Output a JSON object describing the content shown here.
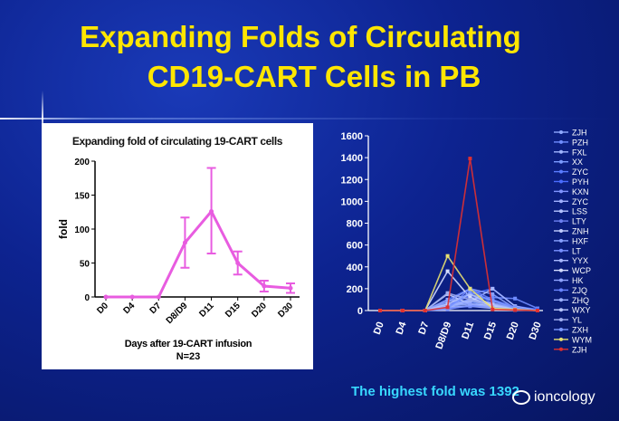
{
  "slide": {
    "title_line1": "Expanding Folds of Circulating",
    "title_line2": "CD19-CART Cells in PB",
    "caption": "The highest  fold was 1392",
    "watermark": "ioncology"
  },
  "colors": {
    "title": "#ffe600",
    "caption": "#38d8ff",
    "left_series": "#e85ce0",
    "background": "#0d2390"
  },
  "chart_data": [
    {
      "type": "line",
      "title": "Expanding fold of circulating 19-CART cells",
      "xlabel": "Days after 19-CART infusion",
      "xlabel_note": "N=23",
      "ylabel": "fold",
      "categories": [
        "D0",
        "D4",
        "D7",
        "D8/D9",
        "D11",
        "D15",
        "D20",
        "D30"
      ],
      "values": [
        0,
        0,
        0,
        80,
        126,
        50,
        16,
        13
      ],
      "error_upper": [
        0,
        0,
        0,
        117,
        190,
        67,
        24,
        20
      ],
      "error_lower": [
        0,
        0,
        0,
        43,
        64,
        33,
        8,
        6
      ],
      "ylim": [
        0,
        200
      ],
      "yticks": [
        0,
        50,
        100,
        150,
        200
      ],
      "grid": false
    },
    {
      "type": "line",
      "title": "",
      "xlabel": "",
      "ylabel": "",
      "categories": [
        "D0",
        "D4",
        "D7",
        "D8/D9",
        "D11",
        "D15",
        "D20",
        "D30"
      ],
      "ylim": [
        0,
        1600
      ],
      "yticks": [
        0,
        200,
        400,
        600,
        800,
        1000,
        1200,
        1400,
        1600
      ],
      "legend_placement": "right",
      "grid": false,
      "series": [
        {
          "name": "ZJH",
          "color": "#8fa8ff",
          "values": [
            0,
            0,
            0,
            80,
            150,
            90,
            30,
            10
          ]
        },
        {
          "name": "PZH",
          "color": "#6f8cff",
          "values": [
            0,
            0,
            0,
            60,
            100,
            120,
            110,
            20
          ]
        },
        {
          "name": "FXL",
          "color": "#9fb4ff",
          "values": [
            0,
            0,
            0,
            40,
            60,
            50,
            20,
            5
          ]
        },
        {
          "name": "XX",
          "color": "#7a9aff",
          "values": [
            0,
            0,
            0,
            30,
            80,
            40,
            10,
            0
          ]
        },
        {
          "name": "ZYC",
          "color": "#5a7cff",
          "values": [
            0,
            0,
            0,
            100,
            200,
            60,
            20,
            0
          ]
        },
        {
          "name": "PYH",
          "color": "#4a6cff",
          "values": [
            0,
            0,
            0,
            20,
            150,
            200,
            40,
            10
          ]
        },
        {
          "name": "KXN",
          "color": "#8094ff",
          "values": [
            0,
            0,
            0,
            10,
            50,
            30,
            10,
            0
          ]
        },
        {
          "name": "ZYC",
          "color": "#a0b0ff",
          "values": [
            0,
            0,
            0,
            50,
            90,
            70,
            20,
            0
          ]
        },
        {
          "name": "LSS",
          "color": "#b4c2ff",
          "values": [
            0,
            0,
            0,
            30,
            40,
            20,
            5,
            0
          ]
        },
        {
          "name": "LTY",
          "color": "#6c80f0",
          "values": [
            0,
            0,
            0,
            60,
            130,
            60,
            30,
            0
          ]
        },
        {
          "name": "ZNH",
          "color": "#c0ccff",
          "values": [
            0,
            0,
            0,
            150,
            60,
            40,
            10,
            0
          ]
        },
        {
          "name": "HXF",
          "color": "#88a0ff",
          "values": [
            0,
            0,
            0,
            80,
            200,
            150,
            20,
            0
          ]
        },
        {
          "name": "LT",
          "color": "#7890ff",
          "values": [
            0,
            0,
            0,
            20,
            40,
            30,
            10,
            0
          ]
        },
        {
          "name": "YYX",
          "color": "#a8b8ff",
          "values": [
            0,
            0,
            0,
            40,
            80,
            200,
            40,
            0
          ]
        },
        {
          "name": "WCP",
          "color": "#d4dcff",
          "values": [
            0,
            0,
            0,
            360,
            120,
            40,
            10,
            0
          ]
        },
        {
          "name": "HK",
          "color": "#90a4ff",
          "values": [
            0,
            0,
            0,
            100,
            60,
            30,
            10,
            0
          ]
        },
        {
          "name": "ZJQ",
          "color": "#6a84ff",
          "values": [
            0,
            0,
            0,
            20,
            200,
            100,
            30,
            0
          ]
        },
        {
          "name": "ZHQ",
          "color": "#9cb0ff",
          "values": [
            0,
            0,
            0,
            30,
            100,
            60,
            20,
            0
          ]
        },
        {
          "name": "WXY",
          "color": "#b8c6ff",
          "values": [
            0,
            0,
            0,
            60,
            150,
            50,
            10,
            0
          ]
        },
        {
          "name": "YL",
          "color": "#a0aef0",
          "values": [
            0,
            0,
            0,
            160,
            100,
            30,
            10,
            0
          ]
        },
        {
          "name": "ZXH",
          "color": "#7c98ff",
          "values": [
            0,
            0,
            0,
            20,
            170,
            90,
            20,
            0
          ]
        },
        {
          "name": "WYM",
          "color": "#e8e070",
          "values": [
            0,
            0,
            0,
            500,
            200,
            20,
            10,
            0
          ]
        },
        {
          "name": "ZJH",
          "color": "#e03030",
          "values": [
            0,
            0,
            0,
            30,
            1392,
            10,
            5,
            0
          ]
        }
      ]
    }
  ]
}
